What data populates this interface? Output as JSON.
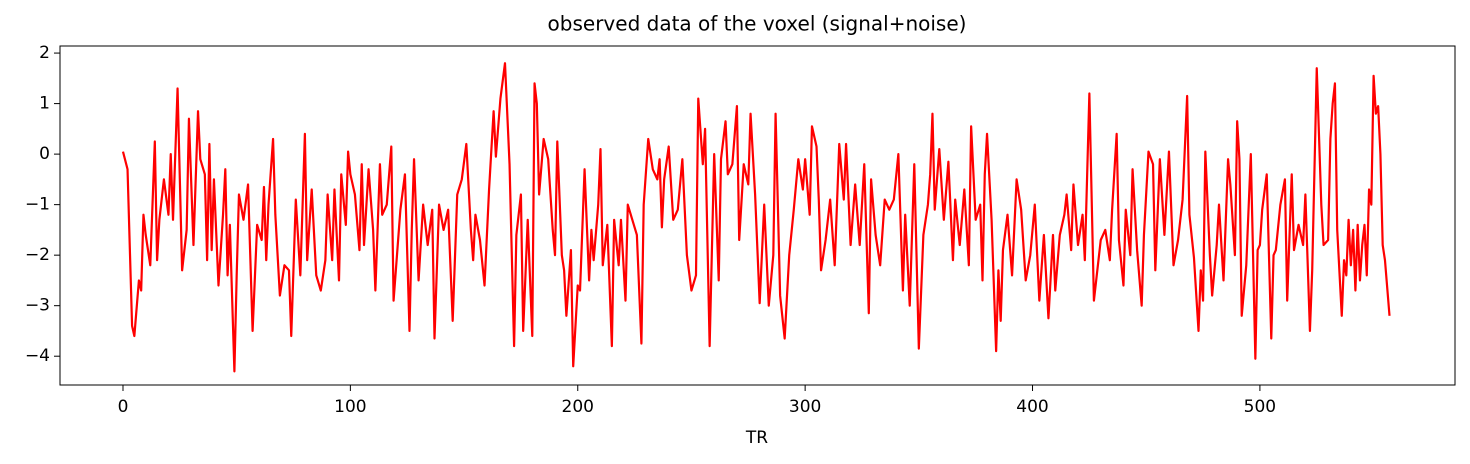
{
  "chart_data": {
    "type": "line",
    "title": "observed data of the voxel (signal+noise)",
    "xlabel": "TR",
    "x": [
      0,
      2,
      4,
      5,
      7,
      8,
      9,
      10,
      12,
      14,
      15,
      16,
      18,
      20,
      21,
      22,
      24,
      26,
      28,
      29,
      31,
      33,
      34,
      36,
      37,
      38,
      39,
      40,
      42,
      44,
      45,
      46,
      47,
      49,
      50,
      51,
      53,
      55,
      57,
      59,
      61,
      62,
      63,
      64,
      66,
      67,
      69,
      71,
      73,
      74,
      76,
      78,
      80,
      81,
      83,
      85,
      87,
      89,
      90,
      92,
      93,
      95,
      96,
      98,
      99,
      100,
      102,
      104,
      105,
      106,
      108,
      110,
      111,
      113,
      114,
      116,
      118,
      119,
      120,
      122,
      124,
      126,
      127,
      128,
      130,
      132,
      134,
      136,
      137,
      139,
      141,
      143,
      145,
      147,
      149,
      151,
      153,
      154,
      155,
      157,
      159,
      161,
      163,
      164,
      166,
      168,
      170,
      172,
      173,
      175,
      176,
      178,
      180,
      181,
      182,
      183,
      185,
      187,
      189,
      190,
      191,
      193,
      194,
      195,
      197,
      198,
      200,
      201,
      203,
      205,
      206,
      207,
      209,
      210,
      211,
      213,
      215,
      216,
      218,
      219,
      221,
      222,
      224,
      226,
      228,
      229,
      231,
      233,
      235,
      236,
      237,
      238,
      240,
      242,
      244,
      246,
      248,
      250,
      252,
      253,
      255,
      256,
      258,
      260,
      262,
      263,
      265,
      266,
      268,
      270,
      271,
      273,
      275,
      276,
      278,
      280,
      282,
      284,
      286,
      287,
      289,
      291,
      293,
      295,
      297,
      299,
      300,
      302,
      303,
      305,
      306,
      307,
      309,
      311,
      313,
      315,
      317,
      318,
      320,
      322,
      324,
      326,
      328,
      329,
      331,
      333,
      335,
      337,
      339,
      341,
      343,
      344,
      346,
      348,
      350,
      352,
      354,
      355,
      356,
      357,
      359,
      361,
      363,
      365,
      366,
      368,
      370,
      372,
      373,
      375,
      377,
      378,
      379,
      380,
      382,
      384,
      385,
      386,
      387,
      389,
      391,
      393,
      395,
      397,
      399,
      401,
      403,
      405,
      407,
      409,
      410,
      412,
      414,
      415,
      417,
      418,
      420,
      422,
      423,
      425,
      427,
      428,
      430,
      432,
      434,
      435,
      437,
      438,
      440,
      441,
      443,
      444,
      446,
      448,
      449,
      451,
      453,
      454,
      456,
      458,
      460,
      462,
      464,
      465,
      466,
      468,
      469,
      471,
      473,
      474,
      475,
      476,
      478,
      479,
      481,
      482,
      484,
      486,
      487,
      489,
      490,
      491,
      492,
      494,
      496,
      498,
      499,
      500,
      501,
      503,
      505,
      506,
      507,
      509,
      511,
      512,
      514,
      515,
      517,
      519,
      520,
      522,
      523,
      525,
      527,
      528,
      530,
      531,
      532,
      533,
      534,
      536,
      537,
      538,
      539,
      540,
      541,
      542,
      543,
      544,
      545,
      546,
      547,
      548,
      549,
      550,
      551,
      552,
      553,
      554,
      555,
      557
    ],
    "series": [
      {
        "color": "#ff0000",
        "values": [
          0.05,
          -0.3,
          -3.4,
          -3.6,
          -2.5,
          -2.7,
          -1.2,
          -1.6,
          -2.2,
          0.25,
          -2.1,
          -1.3,
          -0.5,
          -1.2,
          0.0,
          -1.3,
          1.3,
          -2.3,
          -1.5,
          0.7,
          -1.8,
          0.85,
          -0.1,
          -0.4,
          -2.1,
          0.2,
          -1.9,
          -0.5,
          -2.6,
          -1.2,
          -0.3,
          -2.4,
          -1.4,
          -4.3,
          -2.4,
          -0.8,
          -1.3,
          -0.6,
          -3.5,
          -1.4,
          -1.7,
          -0.65,
          -2.1,
          -1.0,
          0.3,
          -1.2,
          -2.8,
          -2.2,
          -2.3,
          -3.6,
          -0.9,
          -2.4,
          0.4,
          -2.1,
          -0.7,
          -2.4,
          -2.7,
          -2.1,
          -0.8,
          -2.1,
          -0.7,
          -2.5,
          -0.4,
          -1.4,
          0.05,
          -0.4,
          -0.8,
          -1.9,
          -0.2,
          -1.8,
          -0.3,
          -1.5,
          -2.7,
          -0.2,
          -1.2,
          -1.0,
          0.15,
          -2.9,
          -2.3,
          -1.1,
          -0.4,
          -3.5,
          -1.5,
          -0.1,
          -2.5,
          -1.0,
          -1.8,
          -1.1,
          -3.65,
          -1.0,
          -1.5,
          -1.1,
          -3.3,
          -0.8,
          -0.5,
          0.2,
          -1.5,
          -2.1,
          -1.2,
          -1.7,
          -2.6,
          -0.7,
          0.85,
          -0.05,
          1.1,
          1.8,
          -0.2,
          -3.8,
          -1.6,
          -0.8,
          -3.5,
          -1.3,
          -3.6,
          1.4,
          1.0,
          -0.8,
          0.3,
          -0.1,
          -1.5,
          -2.0,
          0.25,
          -2.0,
          -2.3,
          -3.2,
          -1.9,
          -4.2,
          -2.6,
          -2.7,
          -0.3,
          -2.5,
          -1.5,
          -2.1,
          -1.0,
          0.1,
          -2.2,
          -1.4,
          -3.8,
          -1.3,
          -2.2,
          -1.3,
          -2.9,
          -1.0,
          -1.3,
          -1.6,
          -3.75,
          -1.0,
          0.3,
          -0.3,
          -0.5,
          -0.1,
          -1.45,
          -0.5,
          0.15,
          -1.3,
          -1.1,
          -0.1,
          -2.0,
          -2.7,
          -2.4,
          1.1,
          -0.2,
          0.5,
          -3.8,
          0.0,
          -2.5,
          -0.1,
          0.65,
          -0.4,
          -0.2,
          0.95,
          -1.7,
          -0.2,
          -0.6,
          0.8,
          -0.8,
          -2.95,
          -1.0,
          -3.0,
          -2.0,
          0.8,
          -2.8,
          -3.65,
          -2.0,
          -1.1,
          -0.1,
          -0.7,
          -0.1,
          -1.2,
          0.55,
          0.15,
          -0.9,
          -2.3,
          -1.7,
          -0.9,
          -2.2,
          0.2,
          -0.9,
          0.2,
          -1.8,
          -0.6,
          -1.8,
          -0.2,
          -3.15,
          -0.5,
          -1.6,
          -2.2,
          -0.9,
          -1.1,
          -0.9,
          0.0,
          -2.7,
          -1.2,
          -3.0,
          -0.2,
          -3.85,
          -1.6,
          -1.0,
          -0.4,
          0.8,
          -1.1,
          0.1,
          -1.3,
          -0.15,
          -2.1,
          -0.9,
          -1.8,
          -0.7,
          -2.2,
          0.55,
          -1.3,
          -1.0,
          -2.5,
          -0.4,
          0.4,
          -1.3,
          -3.9,
          -2.3,
          -3.3,
          -1.9,
          -1.2,
          -2.4,
          -0.5,
          -1.1,
          -2.5,
          -2.0,
          -1.0,
          -2.9,
          -1.6,
          -3.25,
          -1.6,
          -2.7,
          -1.6,
          -1.2,
          -0.8,
          -1.9,
          -0.6,
          -1.8,
          -1.2,
          -2.1,
          1.2,
          -2.9,
          -2.5,
          -1.7,
          -1.5,
          -2.1,
          -1.1,
          0.4,
          -1.7,
          -2.6,
          -1.1,
          -2.0,
          -0.3,
          -1.9,
          -3.0,
          -1.6,
          0.05,
          -0.2,
          -2.3,
          -0.1,
          -1.6,
          0.05,
          -2.2,
          -1.7,
          -1.3,
          -0.9,
          1.15,
          -1.2,
          -2.05,
          -3.5,
          -2.3,
          -2.9,
          0.05,
          -2.0,
          -2.8,
          -1.8,
          -1.0,
          -2.5,
          -0.1,
          -0.6,
          -2.0,
          0.65,
          -0.1,
          -3.2,
          -2.2,
          0.0,
          -4.05,
          -1.9,
          -1.8,
          -1.1,
          -0.4,
          -3.65,
          -2.0,
          -1.9,
          -1.0,
          -0.5,
          -2.9,
          -0.4,
          -1.9,
          -1.4,
          -1.8,
          -0.8,
          -3.5,
          -2.3,
          1.7,
          -1.0,
          -1.8,
          -1.7,
          0.3,
          1.0,
          1.4,
          -1.5,
          -3.2,
          -2.1,
          -2.4,
          -1.3,
          -2.2,
          -1.5,
          -2.7,
          -1.4,
          -2.5,
          -1.8,
          -1.4,
          -2.4,
          -0.7,
          -1.0,
          1.55,
          0.8,
          0.95,
          0.0,
          -1.8,
          -2.1,
          -3.2
        ]
      }
    ],
    "xlim": [
      -27.7,
      585.8
    ],
    "xticks": [
      0,
      100,
      200,
      300,
      400,
      500
    ],
    "ylim": [
      -4.57,
      2.14
    ],
    "yticks": [
      {
        "value": -4,
        "label": "−4"
      },
      {
        "value": -3,
        "label": "−3"
      },
      {
        "value": -2,
        "label": "−2"
      },
      {
        "value": -1,
        "label": "−1"
      },
      0,
      1,
      2
    ]
  }
}
